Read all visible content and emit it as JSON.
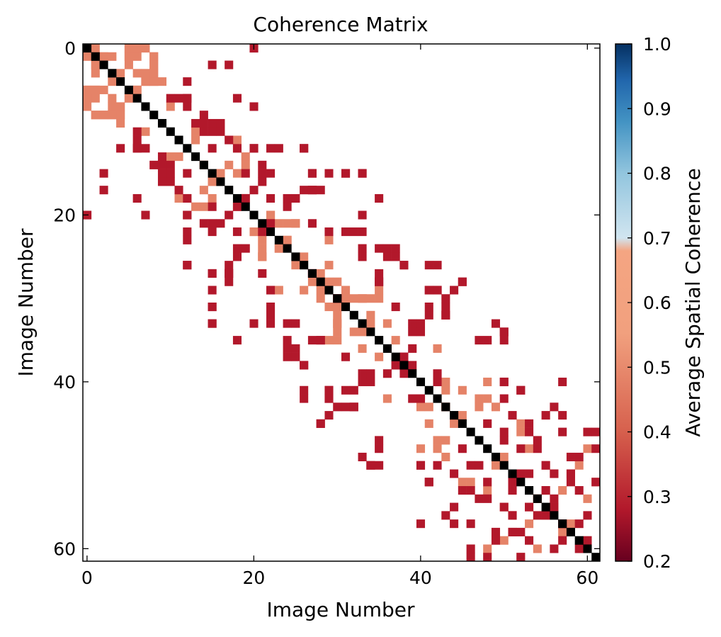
{
  "chart_data": {
    "type": "heatmap",
    "title": "Coherence Matrix",
    "xlabel": "Image Number",
    "ylabel": "Image Number",
    "n": 62,
    "x_ticks": [
      0,
      20,
      40,
      60
    ],
    "y_ticks": [
      0,
      20,
      40,
      60
    ],
    "colorbar": {
      "label": "Average Spatial Coherence",
      "range": [
        0.2,
        1.0
      ],
      "ticks": [
        "0.2",
        "0.3",
        "0.4",
        "0.5",
        "0.6",
        "0.7",
        "0.8",
        "0.9",
        "1.0"
      ],
      "colormap": "RdBu",
      "colors": {
        "dark_red": "#67001f",
        "red": "#b2182b",
        "salmon": "#d6604d",
        "peach": "#f4a582",
        "pale_blue": "#d1e5f0",
        "light_blue": "#92c5de",
        "blue": "#4393c3",
        "mid_blue": "#2166ac",
        "dark_blue": "#053061"
      }
    },
    "diagonal_color": "#000000",
    "values": {
      "0.62": [
        [
          0,
          1
        ],
        [
          0,
          5
        ],
        [
          0,
          7
        ],
        [
          1,
          2
        ],
        [
          1,
          3
        ],
        [
          1,
          5
        ],
        [
          1,
          6
        ],
        [
          1,
          8
        ],
        [
          2,
          1
        ],
        [
          2,
          5
        ],
        [
          2,
          8
        ],
        [
          3,
          4
        ],
        [
          3,
          6
        ],
        [
          3,
          8
        ],
        [
          4,
          7
        ],
        [
          4,
          8
        ],
        [
          5,
          0
        ],
        [
          5,
          1
        ],
        [
          5,
          6
        ],
        [
          6,
          0
        ],
        [
          6,
          5
        ],
        [
          7,
          0
        ],
        [
          7,
          3
        ],
        [
          7,
          4
        ],
        [
          8,
          1
        ],
        [
          8,
          2
        ],
        [
          8,
          3
        ],
        [
          8,
          4
        ],
        [
          9,
          4
        ],
        [
          10,
          7
        ],
        [
          13,
          10
        ],
        [
          13,
          11
        ],
        [
          14,
          14
        ],
        [
          14,
          17
        ],
        [
          15,
          16
        ],
        [
          15,
          18
        ],
        [
          16,
          15
        ],
        [
          16,
          16
        ],
        [
          18,
          11
        ],
        [
          18,
          12
        ],
        [
          18,
          19
        ],
        [
          19,
          13
        ],
        [
          19,
          14
        ],
        [
          19,
          18
        ],
        [
          20,
          22
        ],
        [
          21,
          24
        ],
        [
          21,
          25
        ],
        [
          22,
          20
        ],
        [
          23,
          21
        ],
        [
          23,
          24
        ],
        [
          24,
          23
        ],
        [
          25,
          21
        ],
        [
          26,
          25
        ],
        [
          27,
          28
        ],
        [
          28,
          29
        ],
        [
          29,
          22
        ],
        [
          29,
          23
        ],
        [
          29,
          26
        ],
        [
          30,
          28
        ],
        [
          30,
          31
        ],
        [
          30,
          32
        ],
        [
          30,
          33
        ],
        [
          31,
          29
        ],
        [
          33,
          30
        ],
        [
          34,
          30
        ],
        [
          34,
          32
        ],
        [
          34,
          33
        ],
        [
          35,
          29
        ],
        [
          35,
          30
        ],
        [
          36,
          33
        ],
        [
          37,
          35
        ],
        [
          40,
          42
        ],
        [
          40,
          43
        ],
        [
          42,
          36
        ],
        [
          43,
          41
        ],
        [
          43,
          43
        ],
        [
          44,
          45
        ],
        [
          45,
          41
        ],
        [
          47,
          42
        ],
        [
          47,
          43
        ],
        [
          48,
          40
        ],
        [
          48,
          42
        ],
        [
          49,
          43
        ],
        [
          50,
          49
        ],
        [
          52,
          45
        ],
        [
          52,
          46
        ],
        [
          53,
          48
        ],
        [
          53,
          55
        ],
        [
          54,
          54
        ],
        [
          55,
          50
        ],
        [
          56,
          51
        ],
        [
          56,
          55
        ],
        [
          57,
          53
        ],
        [
          58,
          51
        ],
        [
          58,
          57
        ],
        [
          59,
          50
        ],
        [
          60,
          48
        ],
        [
          60,
          54
        ],
        [
          61,
          52
        ]
      ],
      "0.45": [
        [
          0,
          20
        ],
        [
          6,
          10
        ],
        [
          6,
          11
        ],
        [
          6,
          12
        ],
        [
          7,
          12
        ],
        [
          8,
          14
        ],
        [
          9,
          14
        ],
        [
          9,
          15
        ],
        [
          9,
          16
        ],
        [
          10,
          15
        ],
        [
          11,
          17
        ],
        [
          12,
          4
        ],
        [
          12,
          6
        ],
        [
          12,
          15
        ],
        [
          12,
          18
        ],
        [
          12,
          20
        ],
        [
          12,
          22
        ],
        [
          12,
          26
        ],
        [
          13,
          9
        ],
        [
          14,
          10
        ],
        [
          14,
          21
        ],
        [
          15,
          2
        ],
        [
          15,
          22
        ],
        [
          15,
          27
        ],
        [
          15,
          29
        ],
        [
          15,
          31
        ],
        [
          15,
          33
        ],
        [
          16,
          10
        ],
        [
          17,
          2
        ],
        [
          17,
          26
        ],
        [
          17,
          27
        ],
        [
          18,
          6
        ],
        [
          18,
          22
        ],
        [
          18,
          25
        ],
        [
          18,
          35
        ],
        [
          19,
          15
        ],
        [
          19,
          18
        ],
        [
          20,
          0
        ],
        [
          20,
          7
        ],
        [
          20,
          12
        ],
        [
          20,
          17
        ],
        [
          21,
          15
        ],
        [
          21,
          16
        ],
        [
          21,
          22
        ],
        [
          22,
          29
        ],
        [
          22,
          31
        ],
        [
          22,
          33
        ],
        [
          23,
          12
        ],
        [
          24,
          18
        ],
        [
          24,
          19
        ],
        [
          24,
          35
        ],
        [
          25,
          33
        ],
        [
          25,
          36
        ],
        [
          26,
          12
        ],
        [
          26,
          38
        ],
        [
          26,
          41
        ],
        [
          27,
          15
        ],
        [
          27,
          17
        ],
        [
          27,
          21
        ],
        [
          27,
          27
        ],
        [
          27,
          35
        ],
        [
          28,
          17
        ],
        [
          28,
          35
        ],
        [
          28,
          45
        ],
        [
          29,
          41
        ],
        [
          29,
          42
        ],
        [
          30,
          30
        ],
        [
          30,
          43
        ],
        [
          31,
          15
        ],
        [
          31,
          37
        ],
        [
          32,
          22
        ],
        [
          32,
          41
        ],
        [
          32,
          43
        ],
        [
          33,
          15
        ],
        [
          33,
          20
        ],
        [
          33,
          24
        ],
        [
          33,
          40
        ],
        [
          34,
          40
        ],
        [
          34,
          50
        ],
        [
          35,
          28
        ],
        [
          35,
          48
        ],
        [
          36,
          24
        ],
        [
          37,
          24
        ],
        [
          37,
          25
        ],
        [
          37,
          38
        ],
        [
          38,
          26
        ],
        [
          38,
          37
        ],
        [
          39,
          33
        ],
        [
          39,
          34
        ],
        [
          39,
          36
        ],
        [
          39,
          38
        ],
        [
          40,
          42
        ],
        [
          40,
          50
        ],
        [
          40,
          57
        ],
        [
          41,
          29
        ],
        [
          41,
          31
        ],
        [
          41,
          52
        ],
        [
          42,
          26
        ],
        [
          42,
          29
        ],
        [
          42,
          39
        ],
        [
          42,
          50
        ],
        [
          43,
          31
        ],
        [
          43,
          32
        ],
        [
          44,
          29
        ],
        [
          44,
          51
        ],
        [
          44,
          55
        ],
        [
          45,
          28
        ],
        [
          45,
          48
        ],
        [
          45,
          53
        ],
        [
          46,
          53
        ],
        [
          46,
          57
        ],
        [
          47,
          35
        ],
        [
          47,
          50
        ],
        [
          48,
          52
        ],
        [
          48,
          54
        ],
        [
          49,
          33
        ],
        [
          49,
          59
        ],
        [
          50,
          34
        ],
        [
          50,
          35
        ],
        [
          50,
          40
        ],
        [
          50,
          46
        ],
        [
          51,
          53
        ],
        [
          51,
          58
        ],
        [
          52,
          41
        ],
        [
          52,
          51
        ],
        [
          53,
          55
        ],
        [
          54,
          47
        ],
        [
          54,
          56
        ],
        [
          55,
          50
        ],
        [
          56,
          43
        ],
        [
          56,
          51
        ],
        [
          56,
          55
        ],
        [
          57,
          44
        ],
        [
          57,
          57
        ],
        [
          57,
          59
        ],
        [
          58,
          49
        ],
        [
          58,
          52
        ],
        [
          59,
          53
        ],
        [
          60,
          46
        ],
        [
          60,
          56
        ],
        [
          60,
          59
        ],
        [
          61,
          46
        ],
        [
          61,
          48
        ],
        [
          61,
          52
        ]
      ]
    }
  }
}
